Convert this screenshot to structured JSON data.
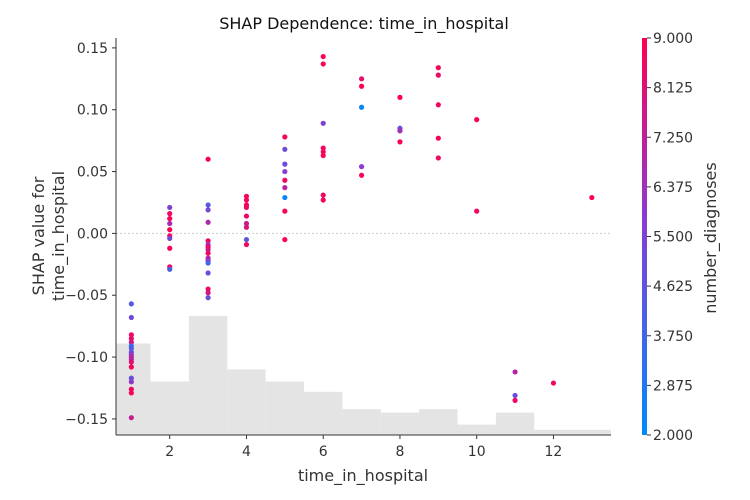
{
  "chart_data": {
    "type": "scatter",
    "title": "SHAP Dependence: time_in_hospital",
    "xlabel": "time_in_hospital",
    "ylabel": "SHAP value for\ntime_in_hospital",
    "xlim": [
      0.6,
      13.5
    ],
    "ylim": [
      -0.163,
      0.158
    ],
    "xticks": [
      2,
      4,
      6,
      8,
      10,
      12
    ],
    "yticks": [
      -0.15,
      -0.1,
      -0.05,
      0.0,
      0.05,
      0.1,
      0.15
    ],
    "ytick_labels": [
      "−0.15",
      "−0.10",
      "−0.05",
      "0.00",
      "0.05",
      "0.10",
      "0.15"
    ],
    "zero_line": true,
    "colorbar": {
      "label": "number_diagnoses",
      "min": 2.0,
      "max": 9.0,
      "tick_labels": [
        "2.000",
        "2.875",
        "3.750",
        "4.625",
        "5.500",
        "6.375",
        "7.250",
        "8.125",
        "9.000"
      ],
      "colors": [
        "#008bfb",
        "#ff0052"
      ]
    },
    "histogram": {
      "edges": [
        0.5,
        1.5,
        2.5,
        3.5,
        4.5,
        5.5,
        6.5,
        7.5,
        8.5,
        9.5,
        10.5,
        11.5,
        12.5,
        13.5
      ],
      "heights": [
        0.53,
        0.31,
        0.69,
        0.38,
        0.31,
        0.25,
        0.15,
        0.13,
        0.15,
        0.06,
        0.13,
        0.03,
        0.03
      ],
      "color": "#e4e4e4"
    },
    "points": [
      {
        "x": 1,
        "y": -0.057,
        "c": 4.5
      },
      {
        "x": 1,
        "y": -0.068,
        "c": 5.2
      },
      {
        "x": 1,
        "y": -0.082,
        "c": 8.6
      },
      {
        "x": 1,
        "y": -0.085,
        "c": 8.6
      },
      {
        "x": 1,
        "y": -0.088,
        "c": 7.8
      },
      {
        "x": 1,
        "y": -0.091,
        "c": 3.5
      },
      {
        "x": 1,
        "y": -0.093,
        "c": 4.2
      },
      {
        "x": 1,
        "y": -0.096,
        "c": 5.0
      },
      {
        "x": 1,
        "y": -0.098,
        "c": 6.0
      },
      {
        "x": 1,
        "y": -0.1,
        "c": 7.2
      },
      {
        "x": 1,
        "y": -0.102,
        "c": 6.8
      },
      {
        "x": 1,
        "y": -0.104,
        "c": 8.2
      },
      {
        "x": 1,
        "y": -0.108,
        "c": 8.8
      },
      {
        "x": 1,
        "y": -0.117,
        "c": 4.8
      },
      {
        "x": 1,
        "y": -0.12,
        "c": 6.0
      },
      {
        "x": 1,
        "y": -0.126,
        "c": 8.6
      },
      {
        "x": 1,
        "y": -0.129,
        "c": 8.8
      },
      {
        "x": 1,
        "y": -0.149,
        "c": 7.4
      },
      {
        "x": 2,
        "y": 0.021,
        "c": 5.5
      },
      {
        "x": 2,
        "y": 0.016,
        "c": 8.5
      },
      {
        "x": 2,
        "y": 0.012,
        "c": 8.8
      },
      {
        "x": 2,
        "y": 0.008,
        "c": 6.6
      },
      {
        "x": 2,
        "y": 0.003,
        "c": 9.0
      },
      {
        "x": 2,
        "y": -0.002,
        "c": 8.8
      },
      {
        "x": 2,
        "y": -0.004,
        "c": 5.0
      },
      {
        "x": 2,
        "y": -0.012,
        "c": 8.8
      },
      {
        "x": 2,
        "y": -0.027,
        "c": 8.8
      },
      {
        "x": 2,
        "y": -0.029,
        "c": 4.0
      },
      {
        "x": 3,
        "y": 0.06,
        "c": 8.9
      },
      {
        "x": 3,
        "y": 0.023,
        "c": 4.5
      },
      {
        "x": 3,
        "y": 0.019,
        "c": 5.2
      },
      {
        "x": 3,
        "y": 0.009,
        "c": 6.8
      },
      {
        "x": 3,
        "y": -0.006,
        "c": 8.6
      },
      {
        "x": 3,
        "y": -0.009,
        "c": 6.0
      },
      {
        "x": 3,
        "y": -0.011,
        "c": 8.8
      },
      {
        "x": 3,
        "y": -0.013,
        "c": 7.8
      },
      {
        "x": 3,
        "y": -0.016,
        "c": 8.5
      },
      {
        "x": 3,
        "y": -0.02,
        "c": 7.0
      },
      {
        "x": 3,
        "y": -0.022,
        "c": 6.2
      },
      {
        "x": 3,
        "y": -0.024,
        "c": 3.8
      },
      {
        "x": 3,
        "y": -0.032,
        "c": 5.0
      },
      {
        "x": 3,
        "y": -0.045,
        "c": 8.6
      },
      {
        "x": 3,
        "y": -0.048,
        "c": 7.8
      },
      {
        "x": 3,
        "y": -0.052,
        "c": 5.0
      },
      {
        "x": 4,
        "y": 0.03,
        "c": 8.8
      },
      {
        "x": 4,
        "y": 0.027,
        "c": 8.6
      },
      {
        "x": 4,
        "y": 0.023,
        "c": 8.8
      },
      {
        "x": 4,
        "y": 0.021,
        "c": 8.5
      },
      {
        "x": 4,
        "y": 0.014,
        "c": 8.6
      },
      {
        "x": 4,
        "y": 0.008,
        "c": 7.6
      },
      {
        "x": 4,
        "y": 0.005,
        "c": 8.0
      },
      {
        "x": 4,
        "y": -0.005,
        "c": 4.6
      },
      {
        "x": 4,
        "y": -0.009,
        "c": 8.8
      },
      {
        "x": 5,
        "y": 0.078,
        "c": 8.9
      },
      {
        "x": 5,
        "y": 0.068,
        "c": 5.0
      },
      {
        "x": 5,
        "y": 0.056,
        "c": 5.0
      },
      {
        "x": 5,
        "y": 0.05,
        "c": 5.8
      },
      {
        "x": 5,
        "y": 0.043,
        "c": 8.6
      },
      {
        "x": 5,
        "y": 0.037,
        "c": 7.0
      },
      {
        "x": 5,
        "y": 0.029,
        "c": 2.4
      },
      {
        "x": 5,
        "y": 0.018,
        "c": 8.8
      },
      {
        "x": 5,
        "y": -0.005,
        "c": 8.8
      },
      {
        "x": 6,
        "y": 0.143,
        "c": 8.9
      },
      {
        "x": 6,
        "y": 0.137,
        "c": 8.6
      },
      {
        "x": 6,
        "y": 0.089,
        "c": 5.5
      },
      {
        "x": 6,
        "y": 0.069,
        "c": 8.8
      },
      {
        "x": 6,
        "y": 0.066,
        "c": 8.6
      },
      {
        "x": 6,
        "y": 0.063,
        "c": 8.8
      },
      {
        "x": 6,
        "y": 0.031,
        "c": 8.6
      },
      {
        "x": 6,
        "y": 0.027,
        "c": 8.8
      },
      {
        "x": 7,
        "y": 0.125,
        "c": 8.2
      },
      {
        "x": 7,
        "y": 0.119,
        "c": 8.9
      },
      {
        "x": 7,
        "y": 0.102,
        "c": 2.3
      },
      {
        "x": 7,
        "y": 0.054,
        "c": 5.8
      },
      {
        "x": 7,
        "y": 0.047,
        "c": 8.8
      },
      {
        "x": 8,
        "y": 0.11,
        "c": 8.9
      },
      {
        "x": 8,
        "y": 0.085,
        "c": 5.0
      },
      {
        "x": 8,
        "y": 0.083,
        "c": 6.5
      },
      {
        "x": 8,
        "y": 0.074,
        "c": 8.8
      },
      {
        "x": 9,
        "y": 0.134,
        "c": 8.9
      },
      {
        "x": 9,
        "y": 0.128,
        "c": 8.5
      },
      {
        "x": 9,
        "y": 0.104,
        "c": 8.6
      },
      {
        "x": 9,
        "y": 0.077,
        "c": 8.9
      },
      {
        "x": 9,
        "y": 0.061,
        "c": 8.6
      },
      {
        "x": 10,
        "y": 0.092,
        "c": 8.9
      },
      {
        "x": 10,
        "y": 0.018,
        "c": 8.6
      },
      {
        "x": 11,
        "y": -0.112,
        "c": 7.0
      },
      {
        "x": 11,
        "y": -0.131,
        "c": 5.0
      },
      {
        "x": 11,
        "y": -0.135,
        "c": 8.6
      },
      {
        "x": 12,
        "y": -0.121,
        "c": 8.6
      },
      {
        "x": 13,
        "y": 0.029,
        "c": 8.9
      }
    ]
  }
}
